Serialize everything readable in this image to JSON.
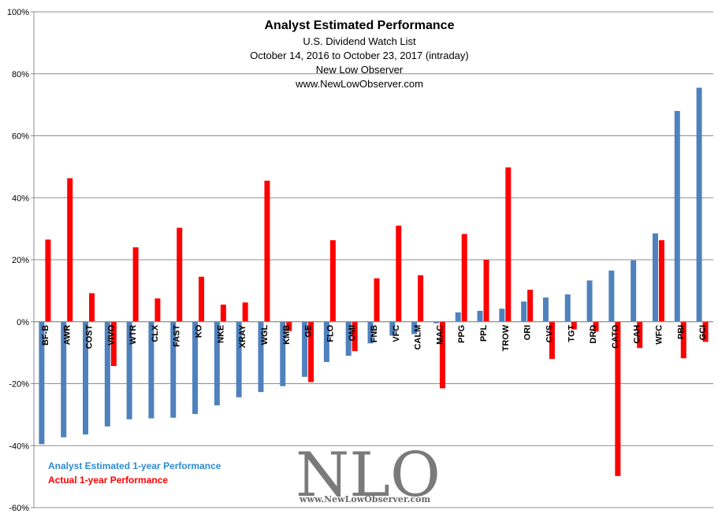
{
  "chart_data": {
    "type": "bar",
    "title": "Analyst Estimated Performance",
    "subtitle_lines": [
      "U.S. Dividend Watch List",
      "October 14, 2016  to October 23, 2017  (intraday)",
      "New Low Observer",
      "www.NewLowObserver.com"
    ],
    "ylim": [
      -60,
      100
    ],
    "yticks": [
      "100%",
      "80%",
      "60%",
      "40%",
      "20%",
      "0%",
      "-20%",
      "-40%",
      "-60%"
    ],
    "ytick_values": [
      100,
      80,
      60,
      40,
      20,
      0,
      -20,
      -40,
      -60
    ],
    "categories": [
      "BF-B",
      "AWR",
      "COST",
      "VIVO",
      "WTR",
      "CLX",
      "FAST",
      "KO",
      "NKE",
      "XRAY",
      "WGL",
      "KMB",
      "GE",
      "FLO",
      "OMI",
      "FNB",
      "VFC",
      "CALM",
      "MAC",
      "PPG",
      "PPL",
      "TROW",
      "ORI",
      "CVS",
      "TGT",
      "DRD",
      "CATO",
      "CAH",
      "WFC",
      "PBI",
      "GCI"
    ],
    "series": [
      {
        "name": "Analyst Estimated 1-year Performance",
        "color": "#4f81bd",
        "values": [
          -39.5,
          -37.3,
          -36.4,
          -33.8,
          -31.5,
          -31.2,
          -31.0,
          -29.8,
          -27.0,
          -24.4,
          -22.7,
          -20.8,
          -17.8,
          -13.0,
          -11.0,
          -7.0,
          -4.5,
          -4.0,
          -0.5,
          3.0,
          3.5,
          4.2,
          6.5,
          7.8,
          8.8,
          13.3,
          16.5,
          19.8,
          28.5,
          68.0,
          75.5
        ]
      },
      {
        "name": "Actual 1-year Performance",
        "color": "#ff0000",
        "values": [
          26.5,
          46.3,
          9.2,
          -14.3,
          24.0,
          7.5,
          30.3,
          14.5,
          5.5,
          6.2,
          45.5,
          -3.0,
          -19.5,
          26.3,
          -9.5,
          14.0,
          31.0,
          15.0,
          -21.5,
          28.3,
          20.0,
          49.8,
          10.3,
          -12.0,
          -2.5,
          -3.2,
          -49.8,
          -8.5,
          26.3,
          -11.8,
          -6.5
        ]
      }
    ],
    "grid": true,
    "legend_placement": "bottom-left"
  },
  "watermark": {
    "logo_text": "NLO",
    "url_text": "www.NewLowObserver.com"
  }
}
